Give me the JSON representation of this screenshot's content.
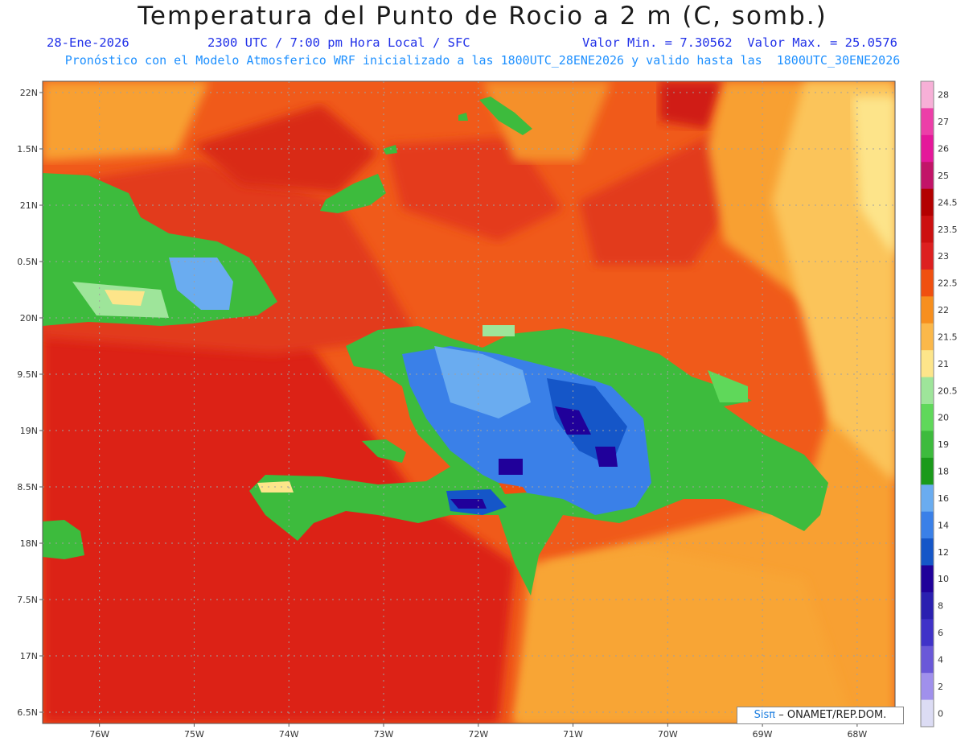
{
  "title": "Temperatura del Punto de Rocio a 2 m (C, somb.)",
  "subtitle": {
    "date": "28-Ene-2026",
    "time": "2300 UTC / 7:00 pm Hora Local / SFC",
    "minmax": "Valor Min. = 7.30562  Valor Max. = 25.0576",
    "model": "Pronóstico con el Modelo Atmosferico WRF inicializado a las 1800UTC_28ENE2026 y valido hasta las  1800UTC_30ENE2026"
  },
  "map": {
    "lon_range": [
      -76.6,
      -67.6
    ],
    "lat_range": [
      16.4,
      22.1
    ],
    "lat_labels": [
      "22N",
      "1.5N",
      "21N",
      "0.5N",
      "20N",
      "9.5N",
      "19N",
      "8.5N",
      "18N",
      "7.5N",
      "17N",
      "6.5N"
    ],
    "lat_values": [
      22,
      21.5,
      21,
      20.5,
      20,
      19.5,
      19,
      18.5,
      18,
      17.5,
      17,
      16.5
    ],
    "lon_labels": [
      "76W",
      "75W",
      "74W",
      "73W",
      "72W",
      "71W",
      "70W",
      "69W",
      "68W"
    ],
    "lon_values": [
      -76,
      -75,
      -74,
      -73,
      -72,
      -71,
      -70,
      -69,
      -68
    ],
    "grid": true
  },
  "colorbar": {
    "labels": [
      "28",
      "27",
      "26",
      "25",
      "24.5",
      "23.5",
      "23",
      "22.5",
      "22",
      "21.5",
      "21",
      "20.5",
      "20",
      "19",
      "18",
      "16",
      "14",
      "12",
      "10",
      "8",
      "6",
      "4",
      "2",
      "0"
    ],
    "colors": [
      "#f7b0d7",
      "#ec3fa8",
      "#e5179a",
      "#c21468",
      "#b30000",
      "#cc1010",
      "#dd2020",
      "#f05010",
      "#f78f1e",
      "#fbb84a",
      "#fde58a",
      "#9ee59a",
      "#5fd85a",
      "#3dbb3d",
      "#1a9a1a",
      "#6aacf0",
      "#3a80e8",
      "#1556c8",
      "#20009a",
      "#2a1fb0",
      "#4032c8",
      "#6a58d8",
      "#a090ec",
      "#dcdcf4"
    ]
  },
  "watermark": {
    "brand": "Sisπ",
    "text": "– ONAMET/REP.DOM."
  }
}
